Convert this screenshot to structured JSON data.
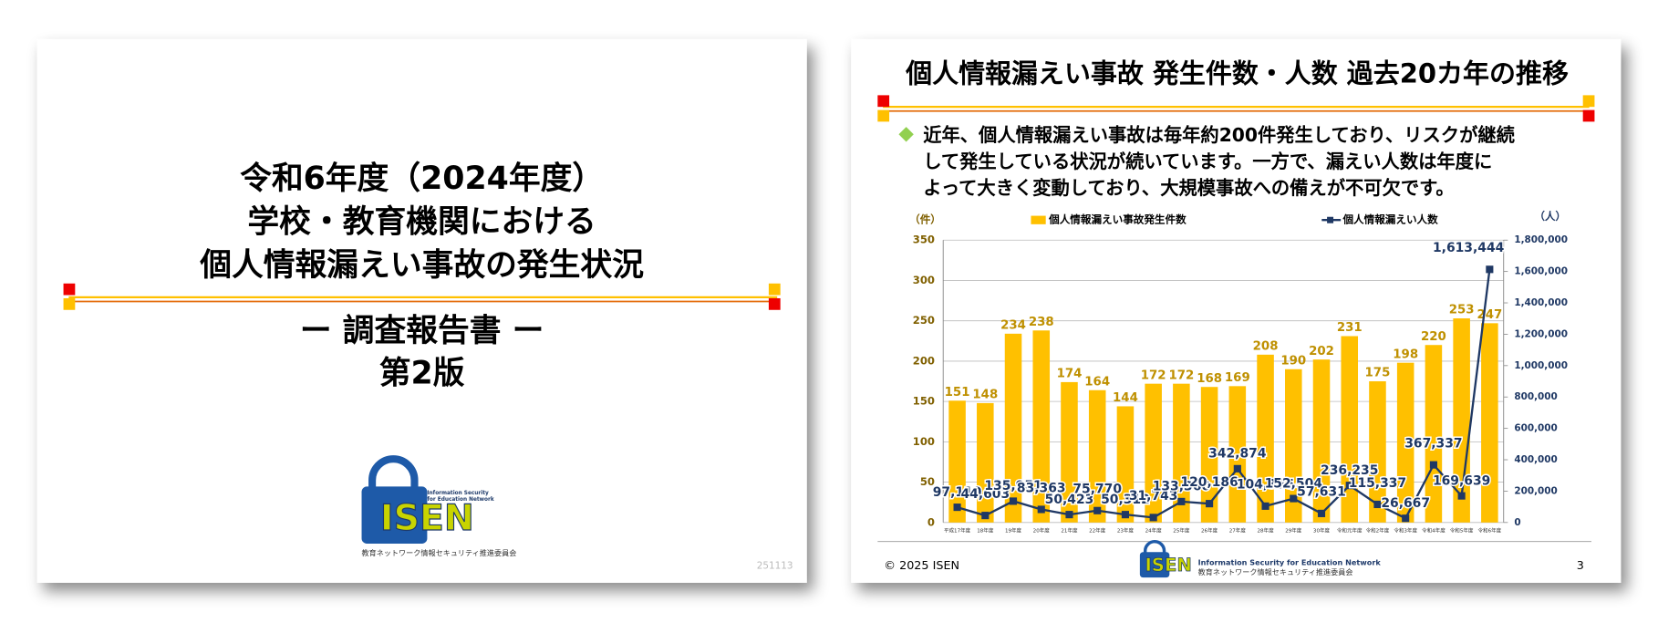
{
  "cover": {
    "title_lines": [
      "令和6年度（2024年度）",
      "学校・教育機関における",
      "個人情報漏えい事故の発生状況"
    ],
    "subtitle": "ー 調査報告書 ー",
    "edition": "第2版",
    "logo": {
      "name": "ISEN",
      "tagline_lines": [
        "Information Security",
        "for Education Network"
      ],
      "org": "教育ネットワーク情報セキュリティ推進委員会"
    },
    "code": "251113"
  },
  "slide": {
    "title": "個人情報漏えい事故 発生件数・人数 過去20カ年の推移",
    "bullet_lines": [
      "近年、個人情報漏えい事故は毎年約200件発生しており、リスクが継続",
      "して発生している状況が続いています。一方で、漏えい人数は年度に",
      "よって大きく変動しており、大規模事故への備えが不可欠です。"
    ],
    "footer": "© 2025 ISEN",
    "page": "3",
    "logo": {
      "name": "ISEN",
      "tagline": "Information Security for Education Network",
      "org": "教育ネットワーク情報セキュリティ推進委員会"
    }
  },
  "chart_data": {
    "type": "bar-line",
    "y_label": "（件）",
    "y2_label": "（人）",
    "categories": [
      "平成17年度",
      "18年度",
      "19年度",
      "20年度",
      "21年度",
      "22年度",
      "23年度",
      "24年度",
      "25年度",
      "26年度",
      "27年度",
      "28年度",
      "29年度",
      "30年度",
      "令和元年度",
      "令和2年度",
      "令和3年度",
      "令和4年度",
      "令和5年度",
      "令和6年度"
    ],
    "series": [
      {
        "name": "個人情報漏えい事故発生件数",
        "color": "#FFC000",
        "values": [
          151,
          148,
          234,
          238,
          174,
          164,
          144,
          172,
          172,
          168,
          169,
          208,
          190,
          202,
          231,
          175,
          198,
          220,
          253,
          247
        ]
      },
      {
        "name": "個人情報漏えい人数",
        "color": "#1F3864",
        "axis": "y2",
        "values": [
          97110,
          44603,
          135951,
          83363,
          50423,
          75770,
          50312,
          31743,
          133360,
          120186,
          342874,
          104375,
          152504,
          57631,
          236235,
          115337,
          26667,
          367337,
          169639,
          1613444
        ],
        "value_labels": [
          "97,110",
          "44,603",
          "135,951",
          "83,363",
          "50,423",
          "75,770",
          "50,312",
          "31,743",
          "133,360",
          "120,186",
          "342,874",
          "104,375",
          "152,504",
          "57,631",
          "236,235",
          "115,337",
          "26,667",
          "367,337",
          "169,639",
          "1,613,444"
        ]
      }
    ],
    "ylim": [
      0,
      350
    ],
    "yticks": [
      0,
      50,
      100,
      150,
      200,
      250,
      300,
      350
    ],
    "y2lim": [
      0,
      1800000
    ],
    "y2ticks": [
      0,
      {
        "value": 200000,
        "label": "200,000"
      },
      {
        "value": 400000,
        "label": "400,000"
      },
      {
        "value": 600000,
        "label": "600,000"
      },
      {
        "value": 800000,
        "label": "800,000"
      },
      {
        "value": 1000000,
        "label": "1,000,000"
      },
      {
        "value": 1200000,
        "label": "1,200,000"
      },
      {
        "value": 1400000,
        "label": "1,400,000"
      },
      {
        "value": 1600000,
        "label": "1,600,000"
      },
      {
        "value": 1800000,
        "label": "1,800,000"
      }
    ],
    "grid": true
  }
}
